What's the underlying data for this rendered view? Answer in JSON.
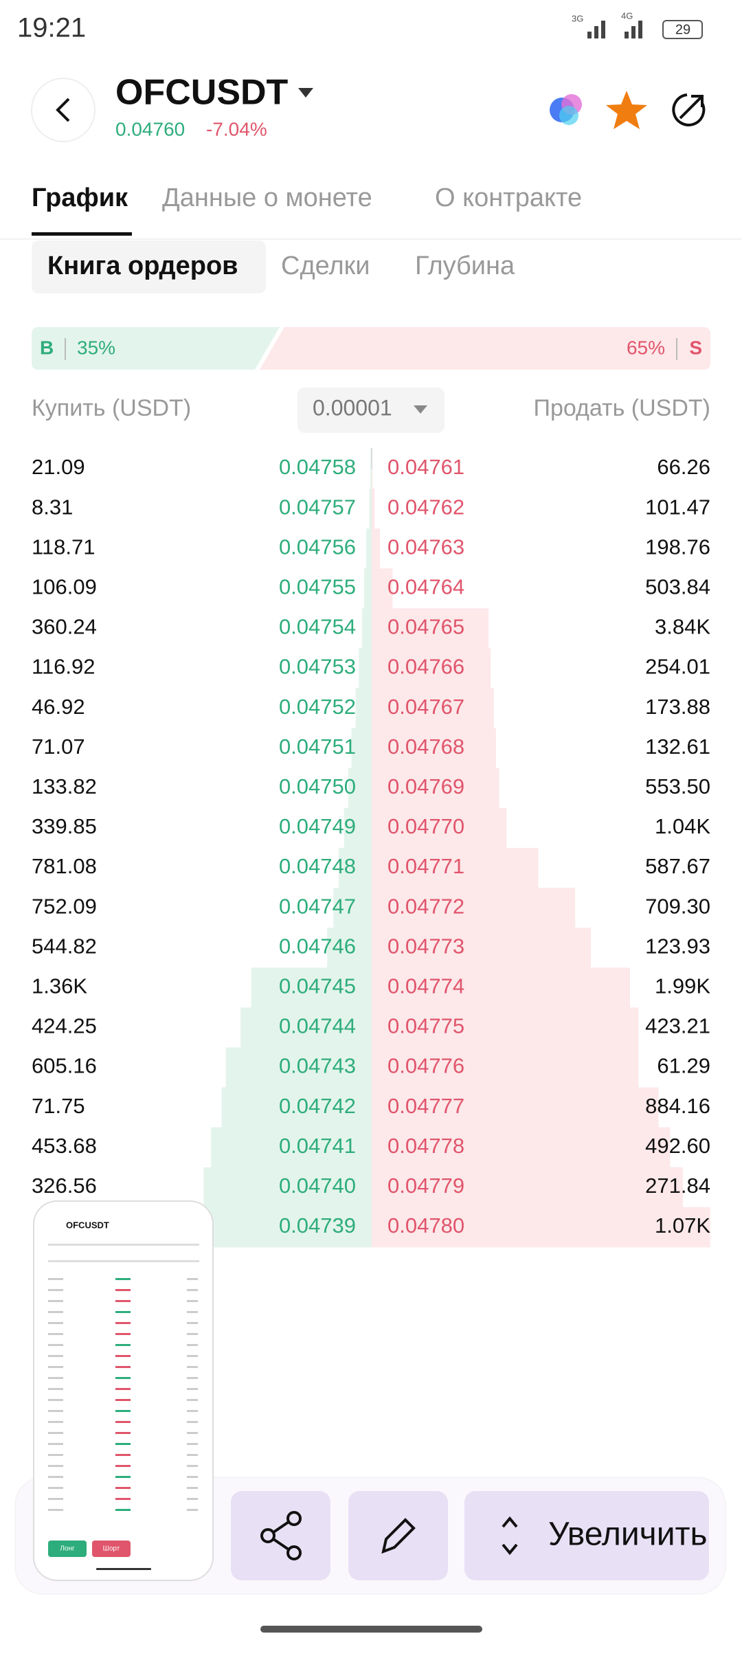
{
  "status_bar": {
    "time": "19:21",
    "net1": "3G",
    "net2": "4G",
    "battery": "29"
  },
  "header": {
    "symbol": "OFCUSDT",
    "price": "0.04760",
    "change": "-7.04%"
  },
  "tabs": [
    "График",
    "Данные о монете",
    "О контракте"
  ],
  "subtabs": [
    "Книга ордеров",
    "Сделки",
    "Глубина"
  ],
  "ratio": {
    "buy_label": "B",
    "buy": "35%",
    "sell": "65%",
    "sell_label": "S"
  },
  "columns": {
    "buy": "Купить (USDT)",
    "step": "0.00001",
    "sell": "Продать (USDT)"
  },
  "rows": [
    [
      "21.09",
      "0.04758",
      "0.04761",
      "66.26"
    ],
    [
      "8.31",
      "0.04757",
      "0.04762",
      "101.47"
    ],
    [
      "118.71",
      "0.04756",
      "0.04763",
      "198.76"
    ],
    [
      "106.09",
      "0.04755",
      "0.04764",
      "503.84"
    ],
    [
      "360.24",
      "0.04754",
      "0.04765",
      "3.84K"
    ],
    [
      "116.92",
      "0.04753",
      "0.04766",
      "254.01"
    ],
    [
      "46.92",
      "0.04752",
      "0.04767",
      "173.88"
    ],
    [
      "71.07",
      "0.04751",
      "0.04768",
      "132.61"
    ],
    [
      "133.82",
      "0.04750",
      "0.04769",
      "553.50"
    ],
    [
      "339.85",
      "0.04749",
      "0.04770",
      "1.04K"
    ],
    [
      "781.08",
      "0.04748",
      "0.04771",
      "587.67"
    ],
    [
      "752.09",
      "0.04747",
      "0.04772",
      "709.30"
    ],
    [
      "544.82",
      "0.04746",
      "0.04773",
      "123.93"
    ],
    [
      "1.36K",
      "0.04745",
      "0.04774",
      "1.99K"
    ],
    [
      "424.25",
      "0.04744",
      "0.04775",
      "423.21"
    ],
    [
      "605.16",
      "0.04743",
      "0.04776",
      "61.29"
    ],
    [
      "71.75",
      "0.04742",
      "0.04777",
      "884.16"
    ],
    [
      "453.68",
      "0.04741",
      "0.04778",
      "492.60"
    ],
    [
      "326.56",
      "0.04740",
      "0.04779",
      "271.84"
    ],
    [
      null,
      "0.04739",
      "0.04780",
      "1.07K"
    ]
  ],
  "thumbnail": {
    "symbol": "OFCUSDT",
    "long": "Лонг",
    "short": "Шорт"
  },
  "actions": {
    "zoom": "Увеличить"
  }
}
